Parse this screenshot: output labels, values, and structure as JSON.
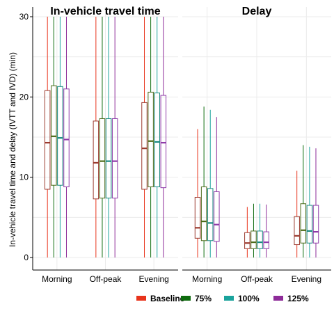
{
  "chart_data": {
    "type": "boxplot",
    "ylabel": "In-vehicle travel time and delay (IVTT and IVD) (min)",
    "xlabel": "",
    "ylim": [
      0,
      30
    ],
    "yticks": [
      0,
      10,
      20,
      30
    ],
    "categories": [
      "Morning",
      "Off-peak",
      "Evening"
    ],
    "legend": {
      "position": "bottom-right"
    },
    "grid": true,
    "series": [
      {
        "name": "Baseline",
        "color": "#e8341c",
        "box_color": "#9b3a2e"
      },
      {
        "name": "75%",
        "color": "#0e6b0e",
        "box_color": "#4d6b1a"
      },
      {
        "name": "100%",
        "color": "#1aa39c",
        "box_color": "#1a8a80"
      },
      {
        "name": "125%",
        "color": "#8e2c99",
        "box_color": "#8e3aa8"
      }
    ],
    "panels": [
      {
        "title": "In-vehicle travel time",
        "boxes": [
          [
            {
              "min": 0,
              "q1": 8.5,
              "median": 14.3,
              "q3": 20.8,
              "max": 30
            },
            {
              "min": 0,
              "q1": 9.0,
              "median": 15.1,
              "q3": 21.4,
              "max": 30
            },
            {
              "min": 0,
              "q1": 9.0,
              "median": 14.9,
              "q3": 21.3,
              "max": 30
            },
            {
              "min": 0,
              "q1": 8.8,
              "median": 14.7,
              "q3": 21.0,
              "max": 30
            }
          ],
          [
            {
              "min": 0,
              "q1": 7.3,
              "median": 11.8,
              "q3": 17.0,
              "max": 30
            },
            {
              "min": 0,
              "q1": 7.4,
              "median": 12.0,
              "q3": 17.3,
              "max": 30
            },
            {
              "min": 0,
              "q1": 7.4,
              "median": 12.0,
              "q3": 17.3,
              "max": 30
            },
            {
              "min": 0,
              "q1": 7.4,
              "median": 12.0,
              "q3": 17.3,
              "max": 30
            }
          ],
          [
            {
              "min": 0,
              "q1": 8.5,
              "median": 13.6,
              "q3": 19.3,
              "max": 30
            },
            {
              "min": 0,
              "q1": 8.8,
              "median": 14.5,
              "q3": 20.6,
              "max": 30
            },
            {
              "min": 0,
              "q1": 8.8,
              "median": 14.4,
              "q3": 20.5,
              "max": 30
            },
            {
              "min": 0,
              "q1": 8.7,
              "median": 14.3,
              "q3": 20.2,
              "max": 30
            }
          ]
        ]
      },
      {
        "title": "Delay",
        "boxes": [
          [
            {
              "min": 0,
              "q1": 2.4,
              "median": 3.7,
              "q3": 7.5,
              "max": 16.0
            },
            {
              "min": 0,
              "q1": 2.1,
              "median": 4.5,
              "q3": 8.8,
              "max": 18.8
            },
            {
              "min": 0,
              "q1": 2.1,
              "median": 4.3,
              "q3": 8.6,
              "max": 18.4
            },
            {
              "min": 0,
              "q1": 2.0,
              "median": 4.1,
              "q3": 8.2,
              "max": 17.5
            }
          ],
          [
            {
              "min": 0,
              "q1": 1.1,
              "median": 1.8,
              "q3": 3.1,
              "max": 6.3
            },
            {
              "min": 0,
              "q1": 1.1,
              "median": 1.9,
              "q3": 3.3,
              "max": 6.7
            },
            {
              "min": 0,
              "q1": 1.1,
              "median": 1.9,
              "q3": 3.3,
              "max": 6.7
            },
            {
              "min": 0,
              "q1": 1.1,
              "median": 1.9,
              "q3": 3.2,
              "max": 6.6
            }
          ],
          [
            {
              "min": 0,
              "q1": 1.6,
              "median": 2.7,
              "q3": 5.1,
              "max": 10.8
            },
            {
              "min": 0,
              "q1": 1.8,
              "median": 3.4,
              "q3": 6.7,
              "max": 14.0
            },
            {
              "min": 0,
              "q1": 1.8,
              "median": 3.3,
              "q3": 6.5,
              "max": 13.8
            },
            {
              "min": 0,
              "q1": 1.8,
              "median": 3.2,
              "q3": 6.5,
              "max": 13.6
            }
          ]
        ]
      }
    ]
  }
}
